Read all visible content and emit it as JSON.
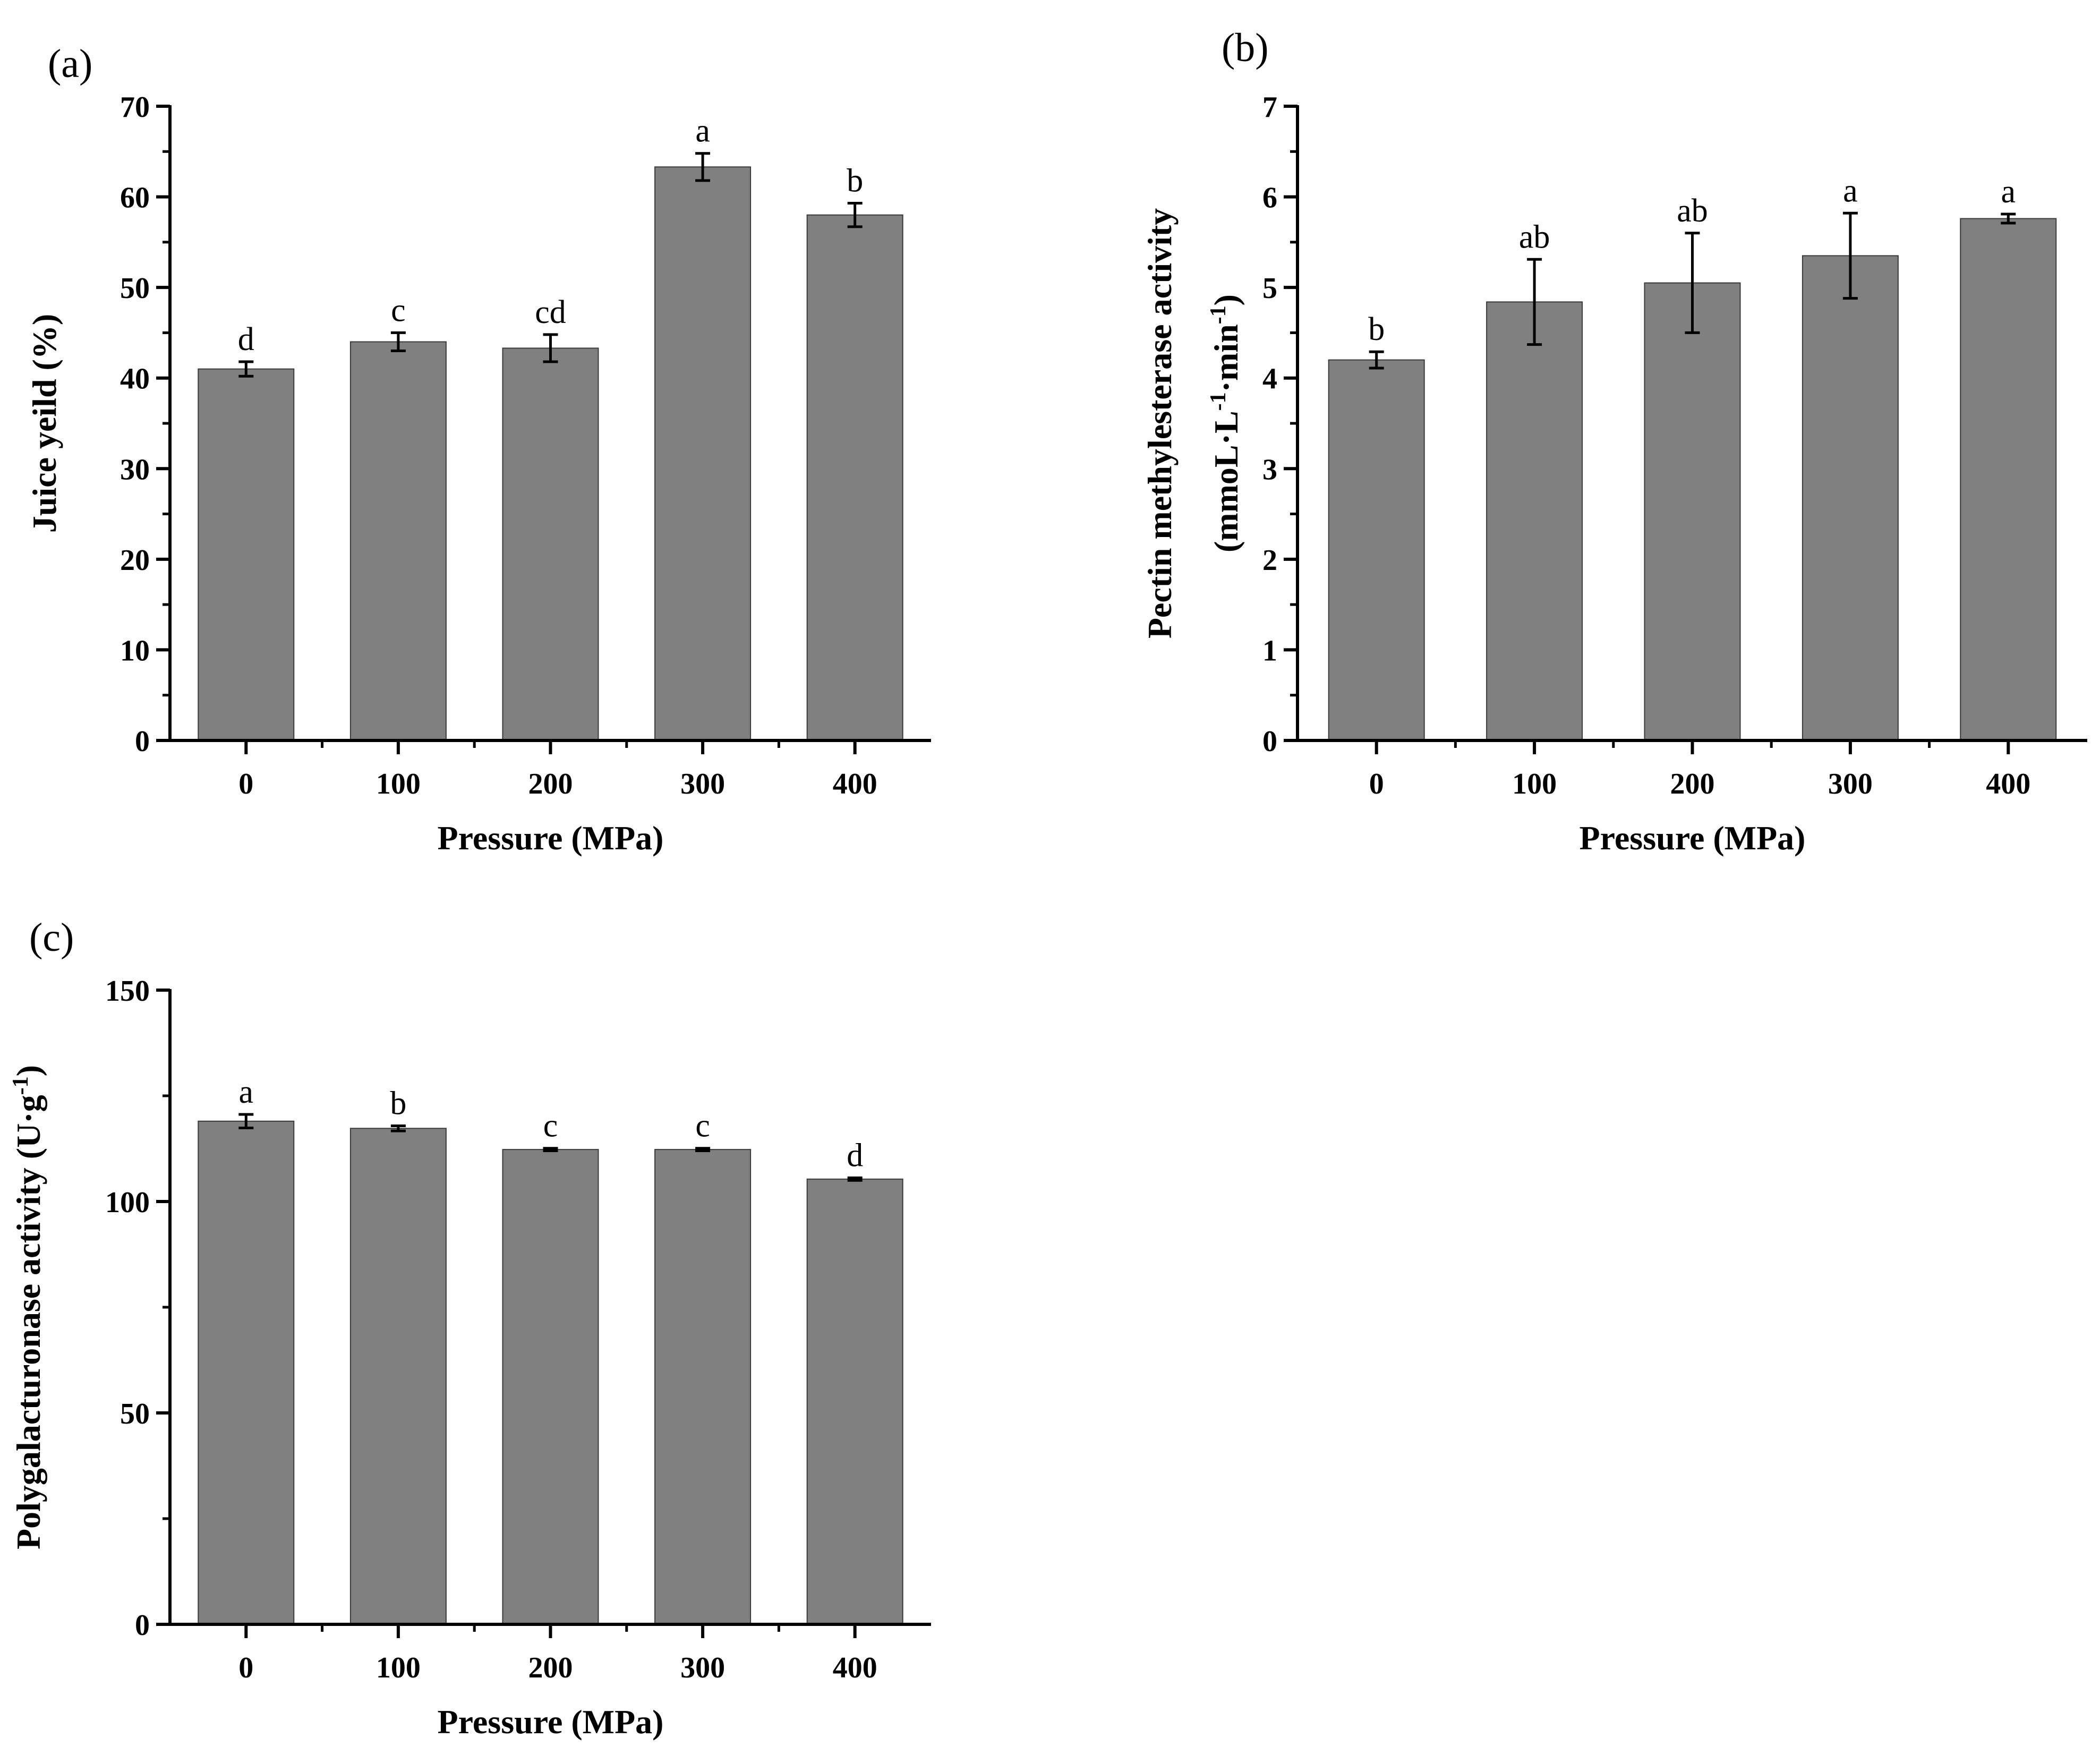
{
  "chart_data": [
    {
      "panel": "(a)",
      "type": "bar",
      "categories": [
        "0",
        "100",
        "200",
        "300",
        "400"
      ],
      "values": [
        41,
        44,
        43.3,
        63.3,
        58
      ],
      "errors": [
        0.8,
        1.0,
        1.5,
        1.5,
        1.3
      ],
      "annotations": [
        "d",
        "c",
        "cd",
        "a",
        "b"
      ],
      "xlabel": "Pressure (MPa)",
      "ylabel": "Juice yeild (%)",
      "ylim": [
        0,
        70
      ],
      "yticks": [
        0,
        10,
        20,
        30,
        40,
        50,
        60,
        70
      ],
      "bar_color": "#808080",
      "grid": false
    },
    {
      "panel": "(b)",
      "type": "bar",
      "categories": [
        "0",
        "100",
        "200",
        "300",
        "400"
      ],
      "values": [
        4.2,
        4.84,
        5.05,
        5.35,
        5.76
      ],
      "errors": [
        0.09,
        0.47,
        0.55,
        0.47,
        0.05
      ],
      "annotations": [
        "b",
        "ab",
        "ab",
        "a",
        "a"
      ],
      "xlabel": "Pressure (MPa)",
      "ylabel_line1": "Pectin methylesterase activity",
      "ylabel_line2": {
        "parts": [
          "(mmoL·L",
          "-1",
          "·min",
          "-1",
          ")"
        ]
      },
      "ylim": [
        0,
        7
      ],
      "yticks": [
        0,
        1,
        2,
        3,
        4,
        5,
        6,
        7
      ],
      "bar_color": "#808080",
      "grid": false
    },
    {
      "panel": "(c)",
      "type": "bar",
      "categories": [
        "0",
        "100",
        "200",
        "300",
        "400"
      ],
      "values": [
        119,
        117.3,
        112.3,
        112.3,
        105.3
      ],
      "errors": [
        1.6,
        0.6,
        0.3,
        0.3,
        0.3
      ],
      "annotations": [
        "a",
        "b",
        "c",
        "c",
        "d"
      ],
      "xlabel": "Pressure (MPa)",
      "ylabel": {
        "parts": [
          "Polygalacturonase activity (U·g",
          "-1",
          ")"
        ]
      },
      "ylim": [
        0,
        150
      ],
      "yticks": [
        0,
        50,
        100,
        150
      ],
      "bar_color": "#808080",
      "grid": false
    }
  ]
}
